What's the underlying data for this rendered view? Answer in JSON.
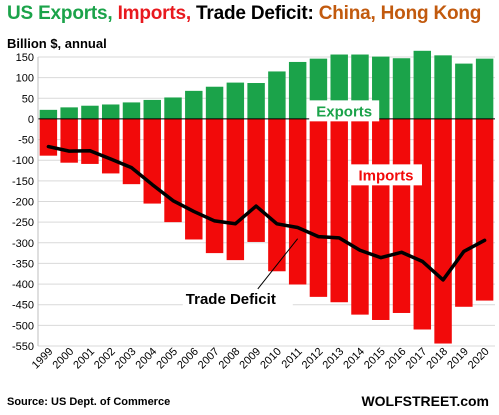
{
  "header": {
    "title_exports": "US Exports,",
    "title_imports": "Imports,",
    "title_deficit": "Trade Deficit:",
    "title_region": "China, Hong Kong",
    "subtitle": "Billion $, annual"
  },
  "footer": {
    "source": "Source: US Dept. of Commerce",
    "brand": "WOLFSTREET.com"
  },
  "colors": {
    "exports": "#1ba34a",
    "imports": "#f20a0a",
    "deficit": "#000000",
    "title_region": "#c25a0e",
    "grid": "#d9d9d9"
  },
  "chart_data": {
    "type": "bar",
    "categories": [
      "1999",
      "2000",
      "2001",
      "2002",
      "2003",
      "2004",
      "2005",
      "2006",
      "2007",
      "2008",
      "2009",
      "2010",
      "2011",
      "2012",
      "2013",
      "2014",
      "2015",
      "2016",
      "2017",
      "2018",
      "2019",
      "2020"
    ],
    "series": [
      {
        "name": "Exports",
        "type": "bar",
        "values": [
          22,
          28,
          32,
          35,
          40,
          46,
          52,
          68,
          78,
          88,
          87,
          115,
          138,
          146,
          156,
          156,
          151,
          147,
          165,
          154,
          134,
          146
        ]
      },
      {
        "name": "Imports",
        "type": "bar",
        "values": [
          -89,
          -106,
          -109,
          -132,
          -158,
          -205,
          -250,
          -292,
          -325,
          -342,
          -298,
          -369,
          -401,
          -431,
          -444,
          -474,
          -487,
          -470,
          -510,
          -544,
          -455,
          -440
        ]
      },
      {
        "name": "Trade Deficit",
        "type": "line",
        "values": [
          -67,
          -78,
          -77,
          -97,
          -118,
          -159,
          -198,
          -224,
          -247,
          -254,
          -211,
          -254,
          -263,
          -285,
          -288,
          -318,
          -336,
          -323,
          -345,
          -390,
          -321,
          -294
        ]
      }
    ],
    "series_labels": [
      "Exports",
      "Imports",
      "Trade Deficit"
    ],
    "ylim": [
      -550,
      150
    ],
    "yticks": [
      150,
      100,
      50,
      0,
      -50,
      -100,
      -150,
      -200,
      -250,
      -300,
      -350,
      -400,
      -450,
      -500,
      -550
    ],
    "ytick_labels": [
      "150",
      "100",
      "50",
      "0",
      "-50",
      "-100",
      "-150",
      "-200",
      "-250",
      "-300",
      "-350",
      "-400",
      "-450",
      "-500",
      "-550"
    ],
    "grid": true,
    "legend": "inline labels"
  }
}
